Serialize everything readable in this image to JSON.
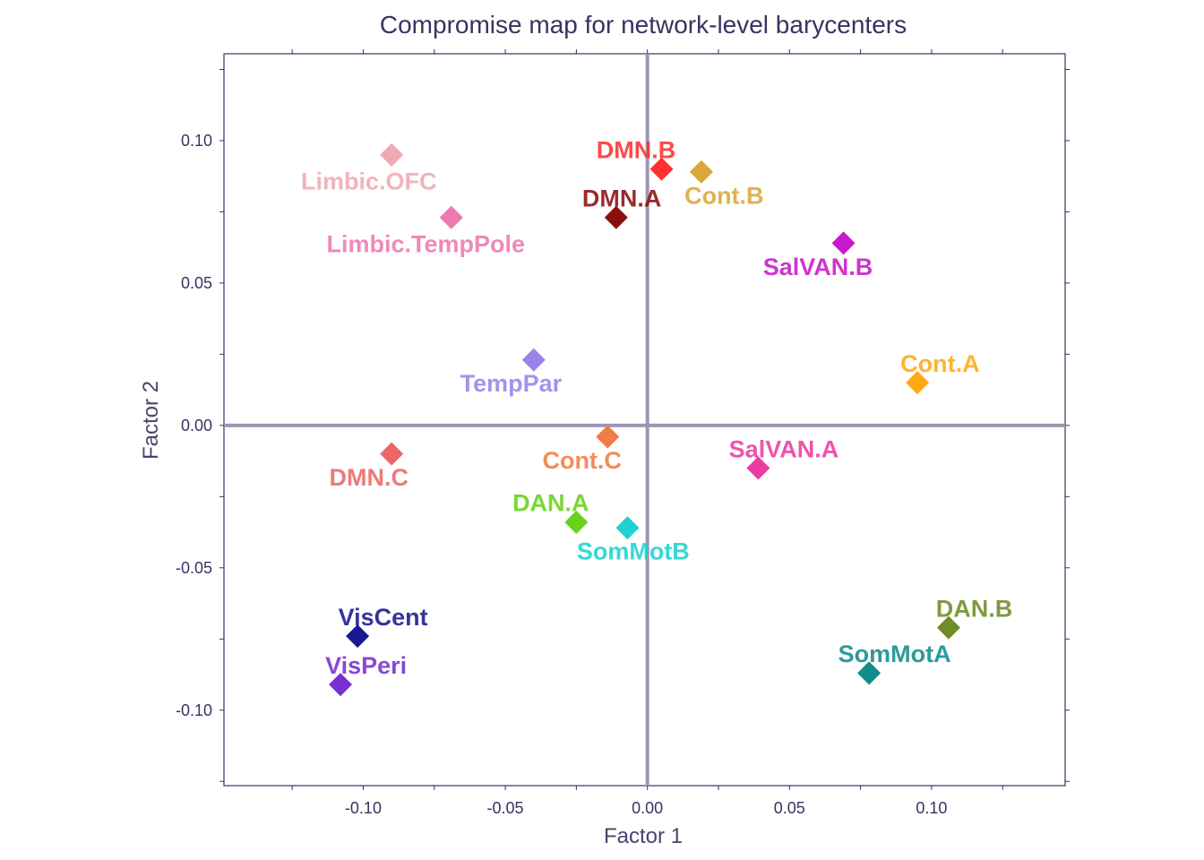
{
  "chart_data": {
    "type": "scatter",
    "title": "Compromise map for network-level barycenters",
    "xlabel": "Factor 1",
    "ylabel": "Factor 2",
    "xlim": [
      -0.149,
      0.147
    ],
    "ylim": [
      -0.1265,
      0.1305
    ],
    "xticks": [
      -0.1,
      -0.05,
      0.0,
      0.05,
      0.1
    ],
    "xtick_labels": [
      "-0.10",
      "-0.05",
      "0.00",
      "0.05",
      "0.10"
    ],
    "yticks": [
      -0.1,
      -0.05,
      0.0,
      0.05,
      0.1
    ],
    "ytick_labels": [
      "-0.10",
      "-0.05",
      "0.00",
      "0.05",
      "0.10"
    ],
    "grid": false,
    "reference_lines": {
      "x": 0,
      "y": 0,
      "color": "#9a97b0"
    },
    "axis_color": "#3b3261",
    "marker": "diamond",
    "points": [
      {
        "name": "Limbic.OFC",
        "x": -0.09,
        "y": 0.095,
        "color": "#f0a8b4",
        "label_dx": -0.008,
        "label_dy": -0.009
      },
      {
        "name": "Limbic.TempPole",
        "x": -0.069,
        "y": 0.073,
        "color": "#ee78b2",
        "label_dx": -0.009,
        "label_dy": -0.009
      },
      {
        "name": "DMN.B",
        "x": 0.005,
        "y": 0.09,
        "color": "#ff3030",
        "label_dx": -0.009,
        "label_dy": 0.007
      },
      {
        "name": "Cont.B",
        "x": 0.019,
        "y": 0.089,
        "color": "#d8a838",
        "label_dx": 0.008,
        "label_dy": -0.008
      },
      {
        "name": "DMN.A",
        "x": -0.011,
        "y": 0.073,
        "color": "#8b0f0f",
        "label_dx": 0.002,
        "label_dy": 0.007
      },
      {
        "name": "SalVAN.B",
        "x": 0.069,
        "y": 0.064,
        "color": "#c818c8",
        "label_dx": -0.009,
        "label_dy": -0.008
      },
      {
        "name": "TempPar",
        "x": -0.04,
        "y": 0.023,
        "color": "#9b82ea",
        "label_dx": -0.008,
        "label_dy": -0.008
      },
      {
        "name": "Cont.A",
        "x": 0.095,
        "y": 0.015,
        "color": "#ffa814",
        "label_dx": 0.008,
        "label_dy": 0.007
      },
      {
        "name": "DMN.C",
        "x": -0.09,
        "y": -0.01,
        "color": "#ec6868",
        "label_dx": -0.008,
        "label_dy": -0.008
      },
      {
        "name": "Cont.C",
        "x": -0.014,
        "y": -0.004,
        "color": "#f27c44",
        "label_dx": -0.009,
        "label_dy": -0.008
      },
      {
        "name": "SalVAN.A",
        "x": 0.039,
        "y": -0.015,
        "color": "#ec3ca0",
        "label_dx": 0.009,
        "label_dy": 0.007
      },
      {
        "name": "DAN.A",
        "x": -0.025,
        "y": -0.034,
        "color": "#68d218",
        "label_dx": -0.009,
        "label_dy": 0.007
      },
      {
        "name": "SomMotB",
        "x": -0.007,
        "y": -0.036,
        "color": "#1ed2d2",
        "label_dx": 0.002,
        "label_dy": -0.008
      },
      {
        "name": "VisCent",
        "x": -0.102,
        "y": -0.074,
        "color": "#181890",
        "label_dx": 0.009,
        "label_dy": 0.007
      },
      {
        "name": "VisPeri",
        "x": -0.108,
        "y": -0.091,
        "color": "#7830d0",
        "label_dx": 0.009,
        "label_dy": 0.007
      },
      {
        "name": "DAN.B",
        "x": 0.106,
        "y": -0.071,
        "color": "#6e8c28",
        "label_dx": 0.009,
        "label_dy": 0.007
      },
      {
        "name": "SomMotA",
        "x": 0.078,
        "y": -0.087,
        "color": "#108c8c",
        "label_dx": 0.009,
        "label_dy": 0.007
      }
    ]
  }
}
